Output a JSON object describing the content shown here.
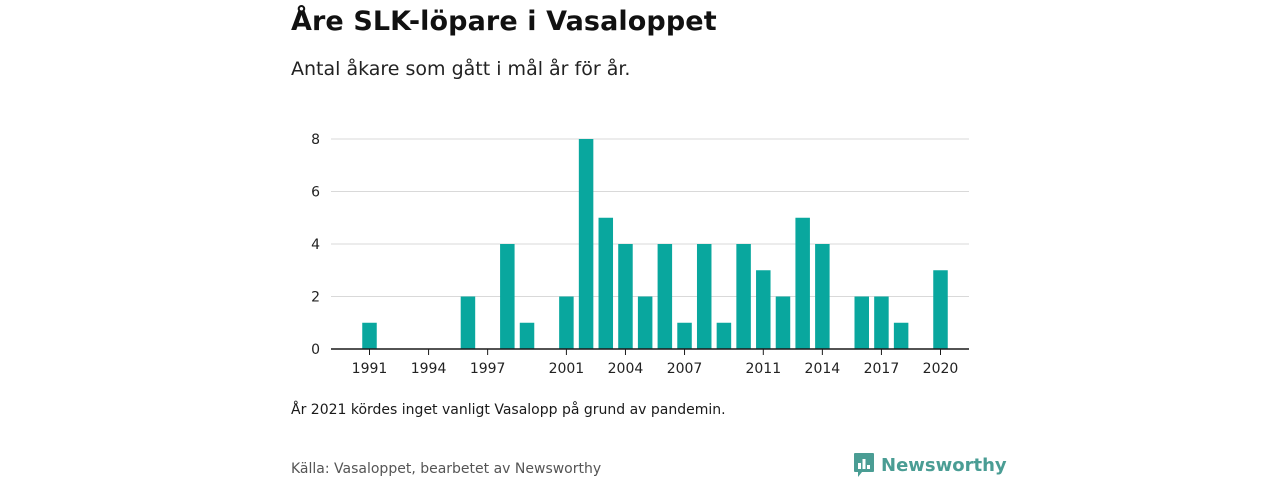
{
  "title": "Åre SLK-löpare i Vasaloppet",
  "subtitle": "Antal åkare som gått i mål år för år.",
  "footnote": "År 2021 kördes inget vanligt Vasalopp på grund av pandemin.",
  "source": "Källa: Vasaloppet, bearbetet av Newsworthy",
  "brand": "Newsworthy",
  "colors": {
    "bar": "#09a79e",
    "grid": "#d9d9d9",
    "axis": "#1a1a1a",
    "brand": "#4a9d94"
  },
  "chart_data": {
    "type": "bar",
    "x": [
      1991,
      1992,
      1993,
      1994,
      1995,
      1996,
      1997,
      1998,
      1999,
      2000,
      2001,
      2002,
      2003,
      2004,
      2005,
      2006,
      2007,
      2008,
      2009,
      2010,
      2011,
      2012,
      2013,
      2014,
      2015,
      2016,
      2017,
      2018,
      2019,
      2020
    ],
    "values": [
      1,
      0,
      0,
      0,
      0,
      2,
      0,
      4,
      1,
      0,
      2,
      8,
      5,
      4,
      2,
      4,
      1,
      4,
      1,
      4,
      3,
      2,
      5,
      4,
      0,
      2,
      2,
      1,
      0,
      3
    ],
    "x_ticks": [
      1991,
      1994,
      1997,
      2001,
      2004,
      2007,
      2011,
      2014,
      2017,
      2020
    ],
    "y_ticks": [
      0,
      2,
      4,
      6,
      8
    ],
    "ylim": [
      0,
      8
    ],
    "grid": true,
    "legend": "none"
  }
}
